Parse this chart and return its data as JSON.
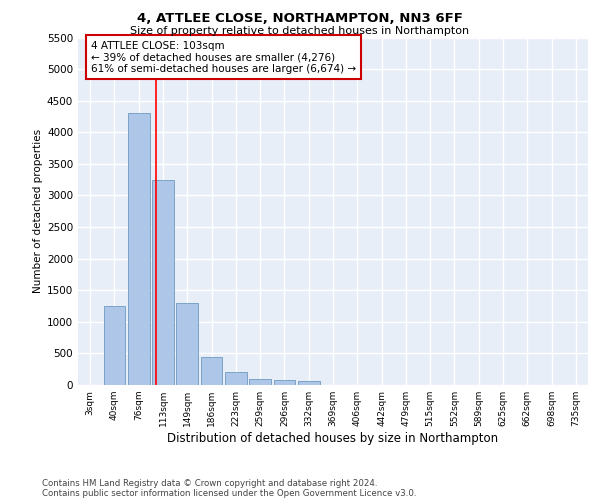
{
  "title1": "4, ATTLEE CLOSE, NORTHAMPTON, NN3 6FF",
  "title2": "Size of property relative to detached houses in Northampton",
  "xlabel": "Distribution of detached houses by size in Northampton",
  "ylabel": "Number of detached properties",
  "categories": [
    "3sqm",
    "40sqm",
    "76sqm",
    "113sqm",
    "149sqm",
    "186sqm",
    "223sqm",
    "259sqm",
    "296sqm",
    "332sqm",
    "369sqm",
    "406sqm",
    "442sqm",
    "479sqm",
    "515sqm",
    "552sqm",
    "589sqm",
    "625sqm",
    "662sqm",
    "698sqm",
    "735sqm"
  ],
  "values": [
    0,
    1250,
    4300,
    3250,
    1300,
    450,
    200,
    100,
    75,
    60,
    0,
    0,
    0,
    0,
    0,
    0,
    0,
    0,
    0,
    0,
    0
  ],
  "bar_color": "#aec6e8",
  "bar_edge_color": "#5b8db8",
  "vline_color": "red",
  "annotation_line1": "4 ATTLEE CLOSE: 103sqm",
  "annotation_line2": "← 39% of detached houses are smaller (4,276)",
  "annotation_line3": "61% of semi-detached houses are larger (6,674) →",
  "annotation_box_color": "white",
  "annotation_box_edge": "#cc0000",
  "ylim": [
    0,
    5500
  ],
  "yticks": [
    0,
    500,
    1000,
    1500,
    2000,
    2500,
    3000,
    3500,
    4000,
    4500,
    5000,
    5500
  ],
  "bg_color": "#e8eef8",
  "grid_color": "white",
  "footer1": "Contains HM Land Registry data © Crown copyright and database right 2024.",
  "footer2": "Contains public sector information licensed under the Open Government Licence v3.0."
}
